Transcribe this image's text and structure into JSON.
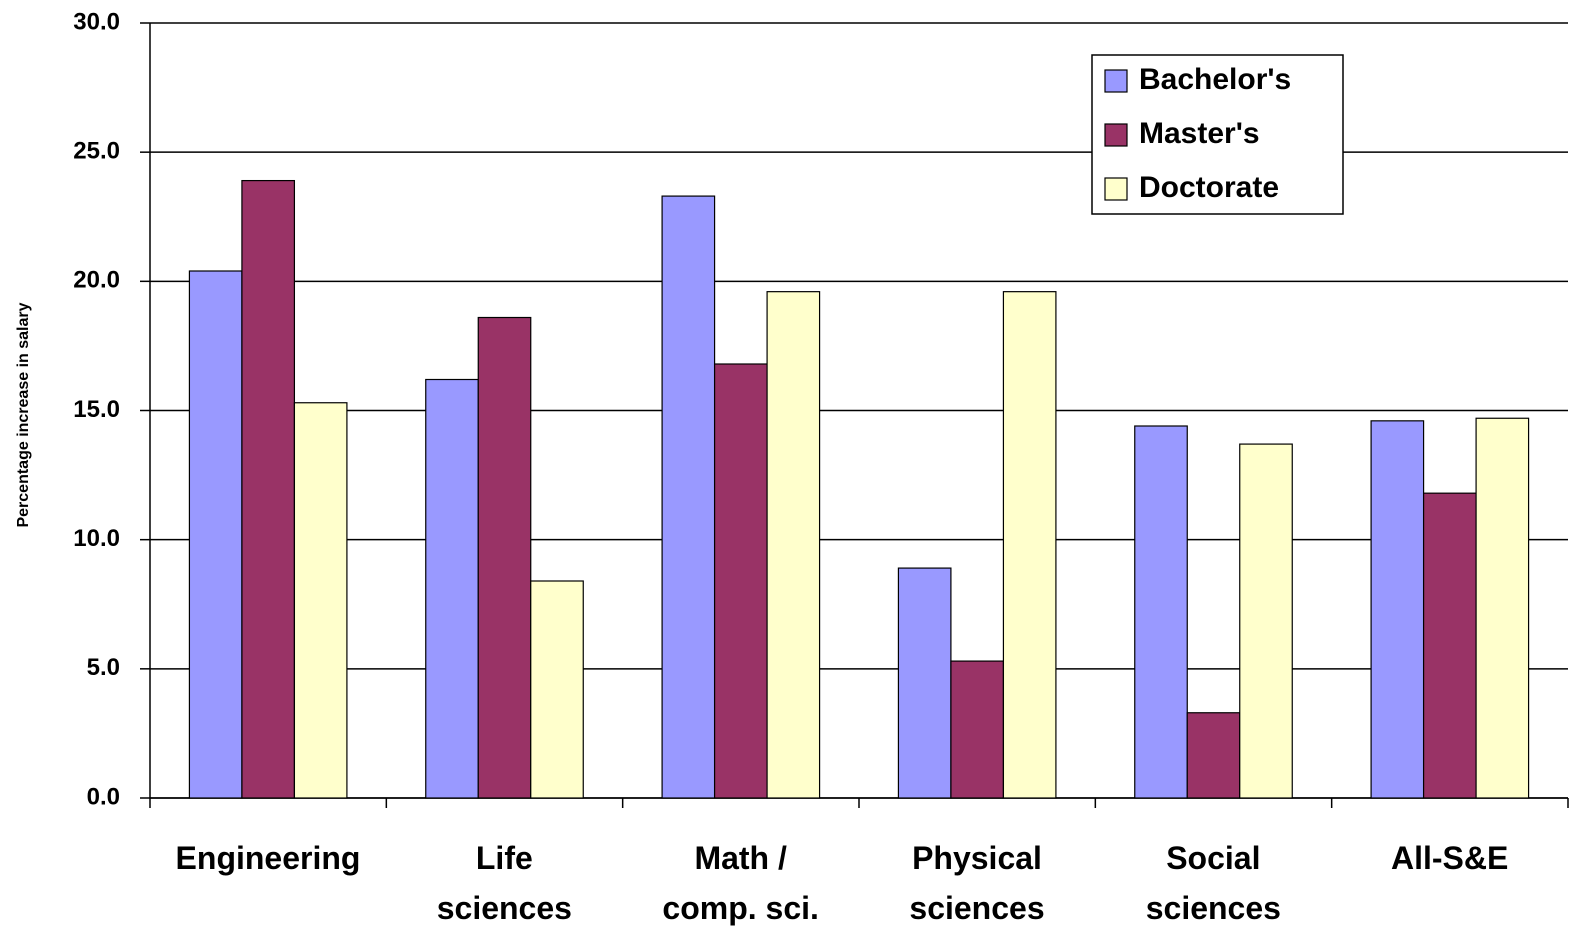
{
  "chart_data": {
    "type": "bar",
    "y_label": "Percentage increase in salary",
    "categories": [
      "Engineering",
      "Life\nsciences",
      "Math /\ncomp. sci.",
      "Physical\nsciences",
      "Social\nsciences",
      "All-S&E"
    ],
    "series": [
      {
        "name": "Bachelor's",
        "color": "#9999ff",
        "values": [
          20.4,
          16.2,
          23.3,
          8.9,
          14.4,
          14.6
        ]
      },
      {
        "name": "Master's",
        "color": "#993366",
        "values": [
          23.9,
          18.6,
          16.8,
          5.3,
          3.3,
          11.8
        ]
      },
      {
        "name": "Doctorate",
        "color": "#ffffcc",
        "values": [
          15.3,
          8.4,
          19.6,
          19.6,
          13.7,
          14.7
        ]
      }
    ],
    "ylim": [
      0,
      30
    ],
    "yticks": [
      {
        "value": 0,
        "label": "0.0"
      },
      {
        "value": 5,
        "label": "5.0"
      },
      {
        "value": 10,
        "label": "10.0"
      },
      {
        "value": 15,
        "label": "15.0"
      },
      {
        "value": 20,
        "label": "20.0"
      },
      {
        "value": 25,
        "label": "25.0"
      },
      {
        "value": 30,
        "label": "30.0"
      }
    ],
    "grid": true,
    "legend": "upper right"
  }
}
